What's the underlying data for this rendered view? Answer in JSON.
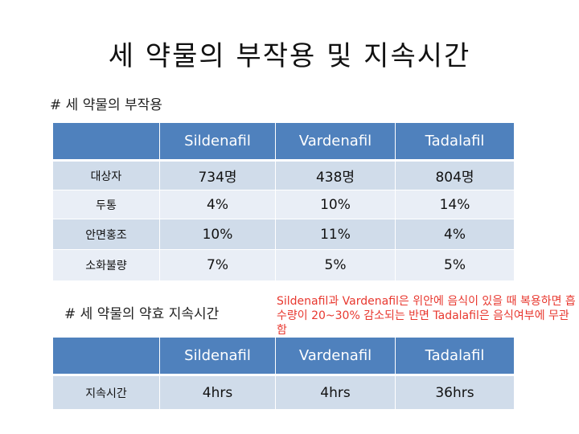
{
  "title": "세 약물의 부작용 및 지속시간",
  "section1": "# 세 약물의 부작용",
  "section2": "# 세 약물의 약효 지속시간",
  "note": "Sildenafil과 Vardenafil은 위안에 음식이 있을 때 복용하면 흡수량이 20~30% 감소되는 반면 Tadalafil은 음식여부에 무관함",
  "drugs": [
    "Sildenafil",
    "Vardenafil",
    "Tadalafil"
  ],
  "side_effects": [
    {
      "label": "대상자",
      "values": [
        "734명",
        "438명",
        "804명"
      ]
    },
    {
      "label": "두통",
      "values": [
        "4%",
        "10%",
        "14%"
      ]
    },
    {
      "label": "안면홍조",
      "values": [
        "10%",
        "11%",
        "4%"
      ]
    },
    {
      "label": "소화불량",
      "values": [
        "7%",
        "5%",
        "5%"
      ]
    }
  ],
  "duration": {
    "label": "지속시간",
    "values": [
      "4hrs",
      "4hrs",
      "36hrs"
    ]
  }
}
